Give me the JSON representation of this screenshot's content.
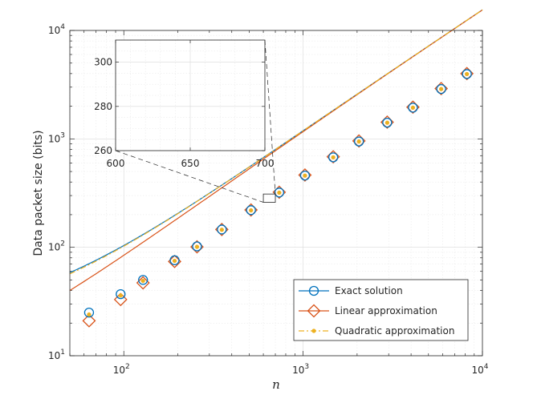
{
  "chart_data": {
    "type": "line",
    "xscale": "log",
    "yscale": "log",
    "xlabel": "n",
    "ylabel": "Data packet size (bits)",
    "xlim": [
      50,
      10000
    ],
    "ylim": [
      10,
      10000
    ],
    "x_ticks": [
      {
        "base": "10",
        "exp": "2",
        "value": 100
      },
      {
        "base": "10",
        "exp": "3",
        "value": 1000
      },
      {
        "base": "10",
        "exp": "4",
        "value": 10000
      }
    ],
    "y_ticks": [
      {
        "base": "10",
        "exp": "1",
        "value": 10
      },
      {
        "base": "10",
        "exp": "2",
        "value": 100
      },
      {
        "base": "10",
        "exp": "3",
        "value": 1000
      },
      {
        "base": "10",
        "exp": "4",
        "value": 10000
      }
    ],
    "grid": true,
    "legend_position": "bottom-right",
    "series": [
      {
        "name": "Exact solution",
        "color": "#0072BD",
        "marker": "circle",
        "dash": "solid",
        "curve": {
          "a": 0.1163,
          "b": 1.0,
          "c": 19.97
        },
        "markers_x": [
          64,
          96,
          128,
          192,
          256,
          352,
          512,
          736,
          1024,
          1472,
          2048,
          2944,
          4096,
          5888,
          8192
        ],
        "markers_y": [
          25,
          37,
          50,
          76,
          102,
          146,
          220,
          320,
          459,
          676,
          946,
          1410,
          1940,
          2880,
          3960
        ]
      },
      {
        "name": "Linear approximation",
        "color": "#D95319",
        "marker": "diamond",
        "dash": "solid",
        "curve": {
          "a": 0.1163,
          "b": 0.0,
          "c": 7.17
        },
        "markers_x": [
          64,
          96,
          128,
          192,
          256,
          352,
          512,
          736,
          1024,
          1472,
          2048,
          2944,
          4096,
          5888,
          8192
        ],
        "markers_y": [
          21,
          33,
          47,
          74,
          101,
          146,
          221,
          322,
          464,
          684,
          957,
          1426,
          1961,
          2910,
          4000
        ]
      },
      {
        "name": "Quadratic approximation",
        "color": "#EDB120",
        "marker": "dot",
        "dash": "dashdot",
        "curve": {
          "a": 0.1163,
          "b": 1.0,
          "c": 18.5
        },
        "markers_x": [
          64,
          96,
          128,
          192,
          256,
          352,
          512,
          736,
          1024,
          1472,
          2048,
          2944,
          4096,
          5888,
          8192
        ],
        "markers_y": [
          24,
          36,
          49,
          75,
          101,
          145,
          219,
          319,
          458,
          675,
          945,
          1409,
          1939,
          2879,
          3959
        ]
      }
    ],
    "inset": {
      "xlim": [
        600,
        700
      ],
      "ylim": [
        260,
        310
      ],
      "x_ticks": [
        600,
        650,
        700
      ],
      "y_ticks": [
        260,
        280,
        300
      ],
      "x_tick_labels": [
        "600",
        "650",
        "700"
      ],
      "y_tick_labels": [
        "260",
        "280",
        "300"
      ]
    }
  }
}
